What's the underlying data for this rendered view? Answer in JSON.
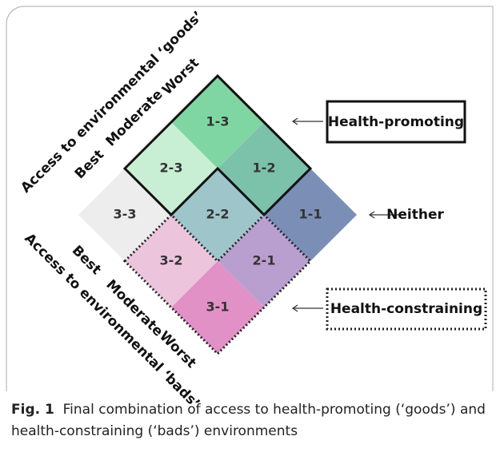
{
  "axes": {
    "goods": {
      "title": "Access to environmental ‘goods’",
      "levels": [
        "Best",
        "Moderate",
        "Worst"
      ]
    },
    "bads": {
      "title": "Access to environmental ‘bads’",
      "levels": [
        "Best",
        "Moderate",
        "Worst"
      ]
    }
  },
  "cells": [
    {
      "label": "1-3",
      "color": "#7fd6a2"
    },
    {
      "label": "2-3",
      "color": "#c8eed3"
    },
    {
      "label": "1-2",
      "color": "#7cc1aa"
    },
    {
      "label": "3-3",
      "color": "#ededed"
    },
    {
      "label": "2-2",
      "color": "#9ec6ca"
    },
    {
      "label": "1-1",
      "color": "#7b8eb6"
    },
    {
      "label": "3-2",
      "color": "#ecc5dd"
    },
    {
      "label": "2-1",
      "color": "#b99fcf"
    },
    {
      "label": "3-1",
      "color": "#e191c6"
    }
  ],
  "groups": [
    {
      "label": "Health-promoting"
    },
    {
      "label": "Neither"
    },
    {
      "label": "Health-constraining"
    }
  ],
  "caption": {
    "label": "Fig. 1",
    "text": "Final combination of access to health-promoting (‘goods’) and health-constraining (‘bads’) environments"
  }
}
